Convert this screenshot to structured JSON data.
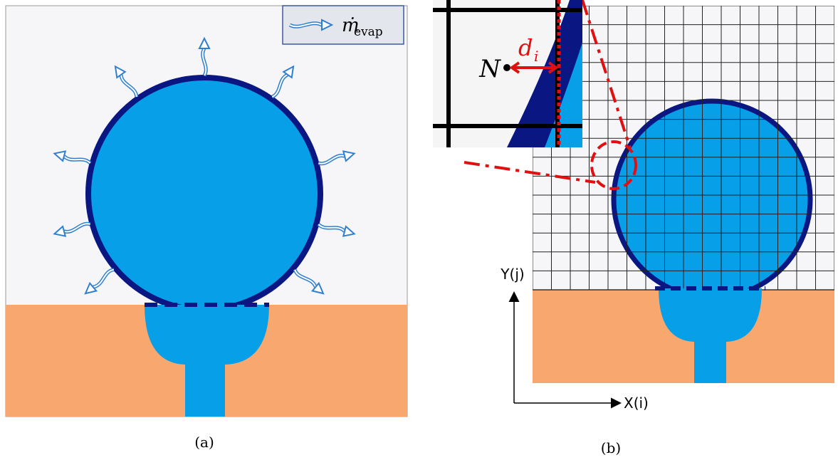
{
  "panel_a": {
    "legend": {
      "symbol": "ṁ",
      "subscript": "evap"
    },
    "caption": "(a)"
  },
  "panel_b": {
    "inset": {
      "point_label": "N",
      "distance_label": "d",
      "distance_subscript": "i"
    },
    "y_axis_label": "Y(j)",
    "x_axis_label": "X(i)",
    "caption": "(b)"
  }
}
